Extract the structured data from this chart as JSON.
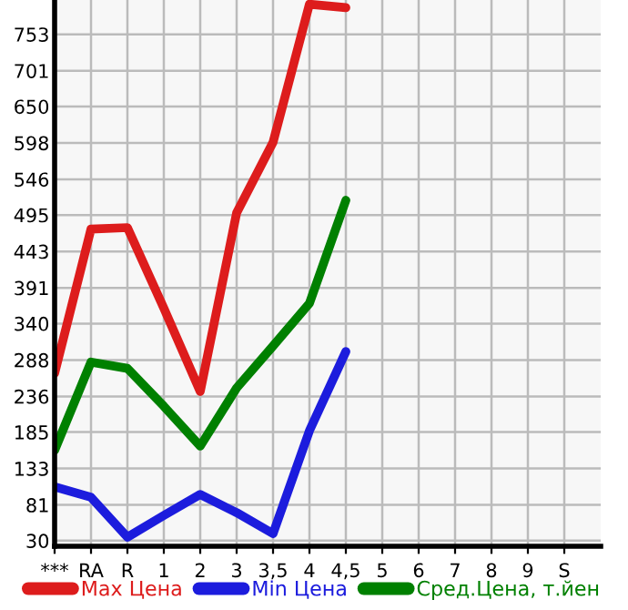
{
  "chart_data": {
    "type": "line",
    "categories": [
      "***",
      "RA",
      "R",
      "1",
      "2",
      "3",
      "3,5",
      "4",
      "4,5",
      "5",
      "6",
      "7",
      "8",
      "9",
      "S"
    ],
    "series": [
      {
        "name": "Max Цена",
        "color": "#dd1c1c",
        "values": [
          269,
          475,
          477,
          362,
          243,
          498,
          599,
          796,
          791,
          null,
          null,
          null,
          null,
          null,
          null
        ]
      },
      {
        "name": "Min Цена",
        "color": "#1c1cdd",
        "values": [
          107,
          92,
          35,
          66,
          96,
          70,
          40,
          187,
          300,
          null,
          null,
          null,
          null,
          null,
          null
        ]
      },
      {
        "name": "Сред.Цена, т.йен",
        "color": "#008000",
        "values": [
          159,
          285,
          276,
          222,
          165,
          248,
          308,
          369,
          516,
          null,
          null,
          null,
          null,
          null,
          null
        ]
      }
    ],
    "ylim": [
      22,
      802
    ],
    "yticks": [
      30,
      81,
      133,
      185,
      236,
      288,
      340,
      391,
      443,
      495,
      546,
      598,
      650,
      701,
      753
    ],
    "grid": true,
    "legend": "bottom",
    "marker": "none",
    "line_style": "solid"
  }
}
